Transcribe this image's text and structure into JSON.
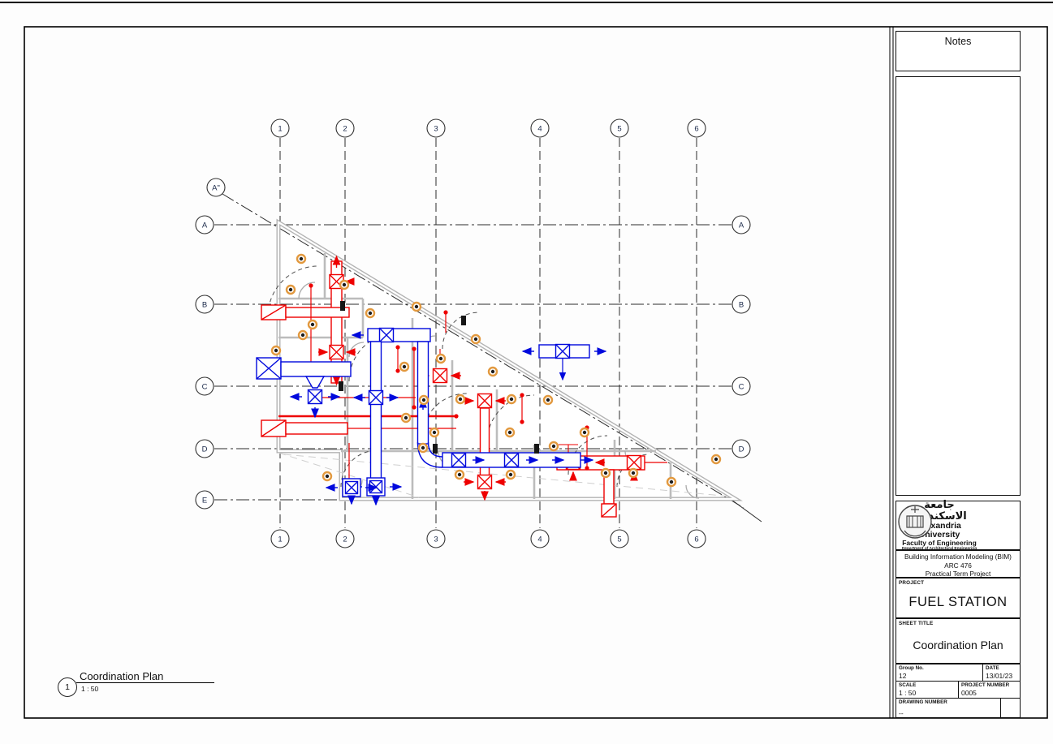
{
  "sheet": {
    "notes_label": "Notes",
    "logo": {
      "arabic": "جامعة الاسكندرية",
      "university": "Alexandria University",
      "faculty": "Faculty of Engineering",
      "department": "Department of Architectural Engineering"
    },
    "course": {
      "line1": "Building Information Modeling (BIM)",
      "line2": "ARC 476",
      "line3": "Practical Term Project"
    },
    "project": {
      "label": "PROJECT",
      "value": "FUEL STATION"
    },
    "sheet_title": {
      "label": "SHEET TITLE",
      "value": "Coordination Plan"
    },
    "group": {
      "label": "Group No.",
      "value": "12"
    },
    "date": {
      "label": "DATE",
      "value": "13/01/23"
    },
    "scale": {
      "label": "SCALE",
      "value": "1 : 50"
    },
    "project_number": {
      "label": "PROJECT NUMBER",
      "value": "0005"
    },
    "drawing_number": {
      "label": "DRAWING NUMBER",
      "value": "--"
    }
  },
  "viewport": {
    "detail_number": "1",
    "title": "Coordination Plan",
    "scale": "1 : 50"
  },
  "grid": {
    "columns": [
      "1",
      "2",
      "3",
      "4",
      "5",
      "6"
    ],
    "rows_left": [
      "A",
      "B",
      "C",
      "D",
      "E"
    ],
    "rows_right": [
      "A",
      "B",
      "C",
      "D"
    ],
    "special": "A\""
  },
  "colors": {
    "supply_duct": "#ee0000",
    "return_duct": "#0009dd",
    "walls": "#b3b3b3",
    "detector_ring": "#e2993f"
  }
}
